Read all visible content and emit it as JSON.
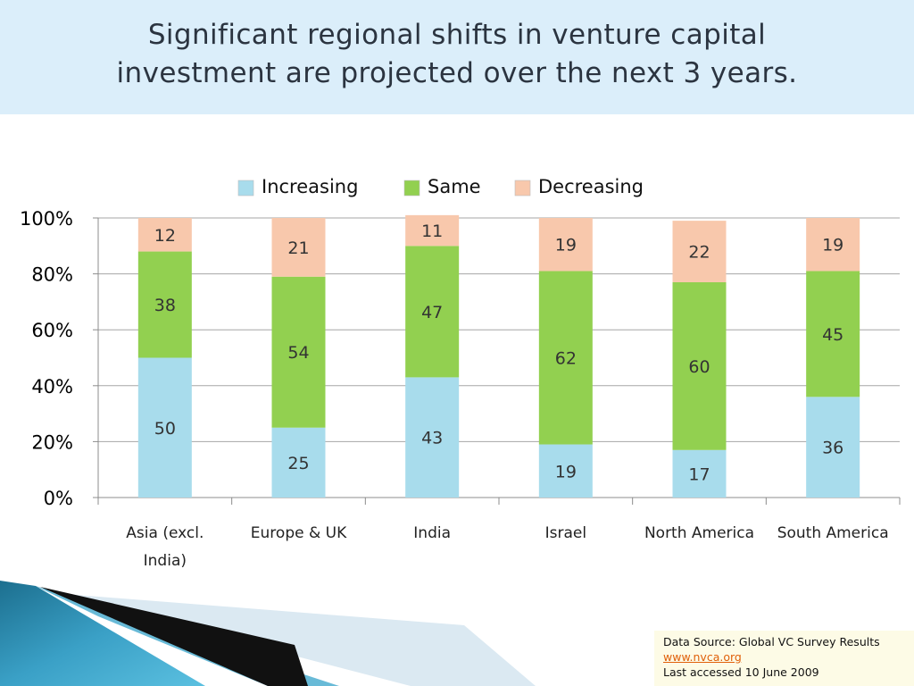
{
  "header": {
    "title_line1": "Significant regional shifts in venture capital",
    "title_line2": "investment are projected over the next 3 years."
  },
  "source": {
    "line1": "Data Source:  Global VC Survey Results",
    "link": "www.nvca.org",
    "line3": "Last accessed 10 June 2009"
  },
  "chart_data": {
    "type": "bar",
    "stacked": true,
    "categories": [
      [
        "Asia (excl.",
        "India)"
      ],
      [
        "Europe & UK"
      ],
      [
        "India"
      ],
      [
        "Israel"
      ],
      [
        "North America"
      ],
      [
        "South America"
      ]
    ],
    "series": [
      {
        "name": "Increasing",
        "color": "#a8dcec",
        "values": [
          50,
          25,
          43,
          19,
          17,
          36
        ]
      },
      {
        "name": "Same",
        "color": "#92d050",
        "values": [
          38,
          54,
          47,
          62,
          60,
          45
        ]
      },
      {
        "name": "Decreasing",
        "color": "#f8c8ac",
        "values": [
          12,
          21,
          11,
          19,
          22,
          19
        ]
      }
    ],
    "y_ticks": [
      "0%",
      "20%",
      "40%",
      "60%",
      "80%",
      "100%"
    ],
    "ylim": [
      0,
      100
    ],
    "grid": true,
    "legend_position": "top"
  }
}
